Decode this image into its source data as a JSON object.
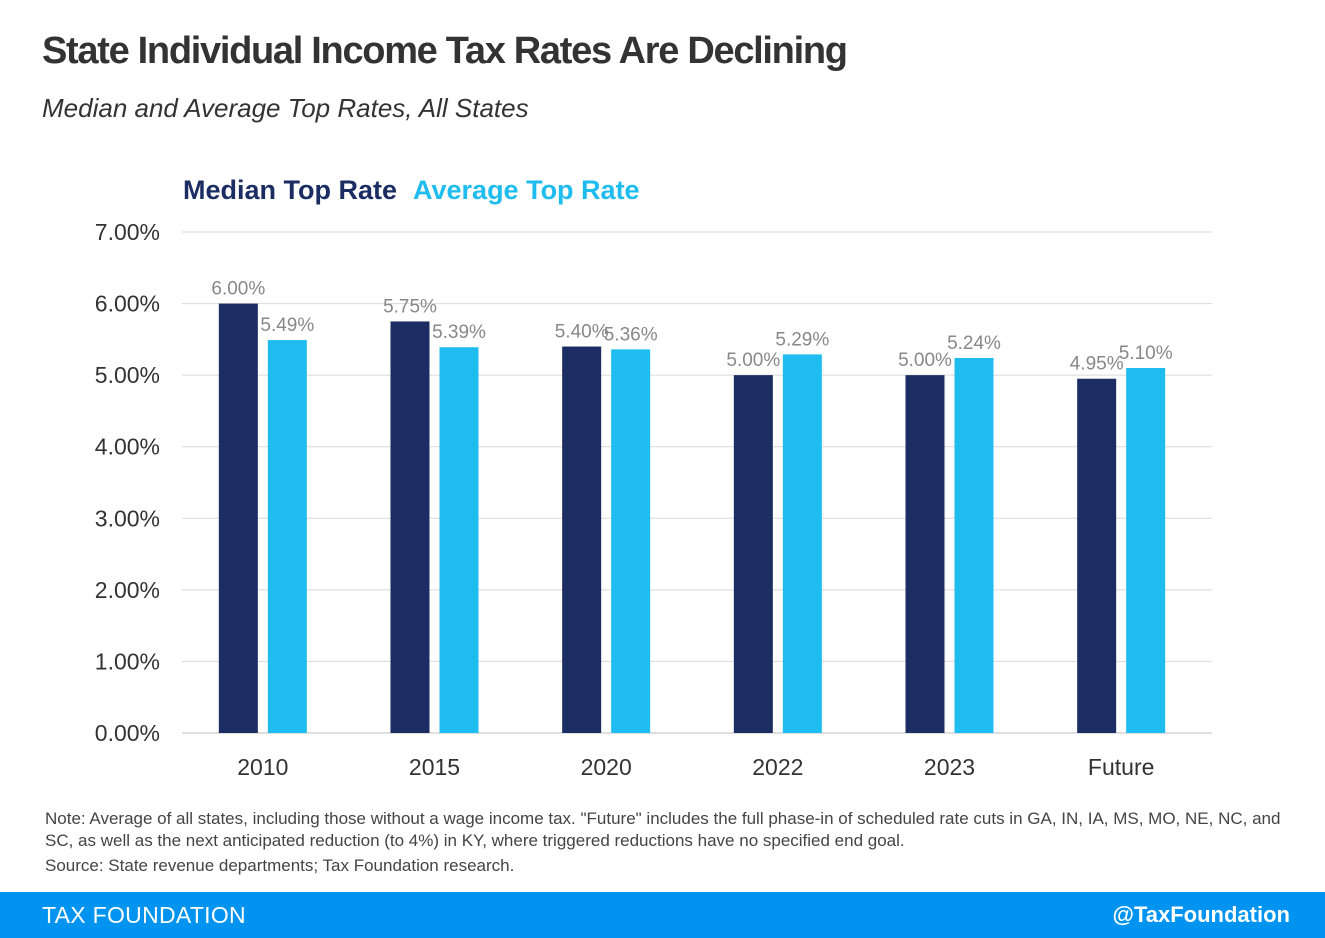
{
  "header": {
    "title": "State Individual Income Tax Rates Are Declining",
    "subtitle": "Median and Average Top Rates, All States"
  },
  "chart_data": {
    "type": "bar",
    "categories": [
      "2010",
      "2015",
      "2020",
      "2022",
      "2023",
      "Future"
    ],
    "series": [
      {
        "name": "Median Top Rate",
        "color": "#1b2d63",
        "values": [
          6.0,
          5.75,
          5.4,
          5.0,
          5.0,
          4.95
        ],
        "labels": [
          "6.00%",
          "5.75%",
          "5.40%",
          "5.00%",
          "5.00%",
          "4.95%"
        ]
      },
      {
        "name": "Average Top Rate",
        "color": "#1ebcef",
        "values": [
          5.49,
          5.39,
          5.36,
          5.29,
          5.24,
          5.1
        ],
        "labels": [
          "5.49%",
          "5.39%",
          "5.36%",
          "5.29%",
          "5.24%",
          "5.10%"
        ]
      }
    ],
    "yticks": [
      "0.00%",
      "1.00%",
      "2.00%",
      "3.00%",
      "4.00%",
      "5.00%",
      "6.00%",
      "7.00%"
    ],
    "ylim": [
      0,
      7
    ],
    "grid": true,
    "legend_position": "top-left"
  },
  "notes": "Note: Average of all states, including those without a wage income tax. \"Future\" includes the full phase-in of scheduled rate cuts in GA, IN, IA, MS, MO, NE, NC, and SC, as well as the next anticipated reduction (to 4%) in KY, where triggered reductions have no specified end goal.",
  "source": "Source: State revenue departments; Tax Foundation research.",
  "footer": {
    "brand": "TAX FOUNDATION",
    "handle": "@TaxFoundation",
    "color": "#0094f0"
  },
  "colors": {
    "median": "#1b2d63",
    "average": "#1ebcef",
    "grid": "#d9d9d9"
  }
}
